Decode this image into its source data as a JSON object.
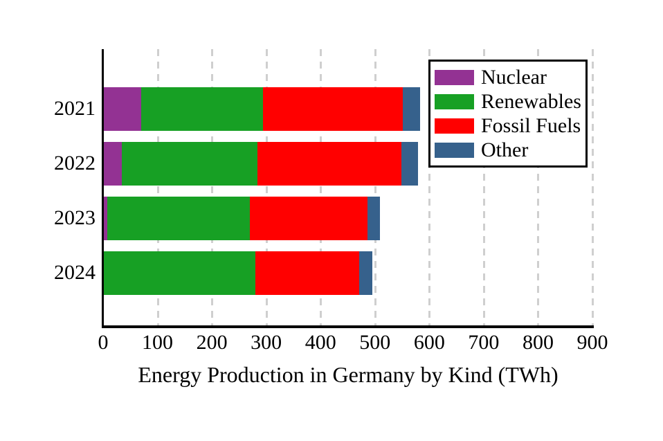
{
  "chart_data": {
    "type": "bar",
    "orientation": "horizontal",
    "stacked": true,
    "title": "",
    "xlabel": "Energy Production in Germany by Kind (TWh)",
    "ylabel": "",
    "categories": [
      "2021",
      "2022",
      "2023",
      "2024"
    ],
    "series": [
      {
        "name": "Nuclear",
        "color": "#933293",
        "values": [
          69,
          34,
          7,
          0
        ]
      },
      {
        "name": "Renewables",
        "color": "#17a024",
        "values": [
          224,
          249,
          262,
          279
        ]
      },
      {
        "name": "Fossil Fuels",
        "color": "#ff0000",
        "values": [
          258,
          265,
          217,
          192
        ]
      },
      {
        "name": "Other",
        "color": "#36618c",
        "values": [
          32,
          30,
          23,
          24
        ]
      }
    ],
    "totals": [
      583,
      578,
      509,
      495
    ],
    "xlim": [
      0,
      900
    ],
    "xticks": [
      0,
      100,
      200,
      300,
      400,
      500,
      600,
      700,
      800,
      900
    ],
    "grid": "vertical-dashed",
    "legend_position": "upper-right",
    "colors": {
      "background": "#ffffff",
      "grid": "#cfcfcf",
      "axis": "#000000",
      "text": "#000000",
      "legend_border": "#000000"
    }
  }
}
